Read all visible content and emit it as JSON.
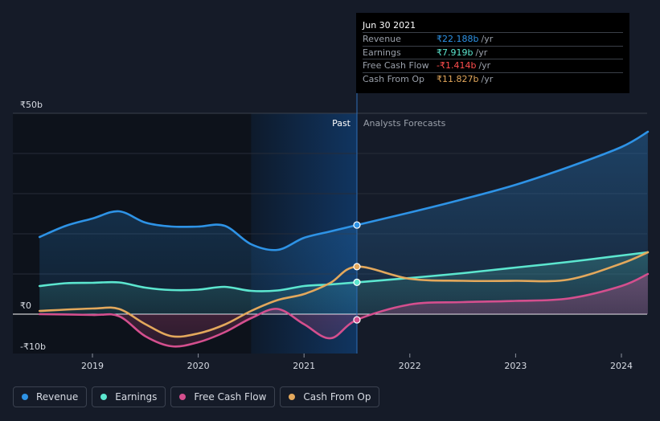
{
  "chart_data": {
    "type": "line",
    "title": "",
    "xlabel": "",
    "ylabel": "",
    "ylim": [
      -10,
      50
    ],
    "y_ticks": [
      {
        "value": 50,
        "label": "₹50b"
      },
      {
        "value": 0,
        "label": "₹0"
      },
      {
        "value": -10,
        "label": "-₹10b"
      }
    ],
    "x_ticks": [
      {
        "value": 2019,
        "label": "2019"
      },
      {
        "value": 2020,
        "label": "2020"
      },
      {
        "value": 2021,
        "label": "2021"
      },
      {
        "value": 2022,
        "label": "2022"
      },
      {
        "value": 2023,
        "label": "2023"
      },
      {
        "value": 2024,
        "label": "2024"
      }
    ],
    "xlim": [
      2018.25,
      2024.25
    ],
    "past_label": "Past",
    "forecast_label": "Analysts Forecasts",
    "highlight_range": [
      2020.5,
      2021.5
    ],
    "split_x": 2021.5,
    "series": [
      {
        "name": "Revenue",
        "color": "#2e93e6",
        "fill": true,
        "points": [
          [
            2018.5,
            19.2
          ],
          [
            2018.75,
            22.0
          ],
          [
            2019.0,
            23.8
          ],
          [
            2019.25,
            25.6
          ],
          [
            2019.5,
            22.8
          ],
          [
            2019.75,
            21.8
          ],
          [
            2020.0,
            21.8
          ],
          [
            2020.25,
            22.0
          ],
          [
            2020.5,
            17.4
          ],
          [
            2020.75,
            16.0
          ],
          [
            2021.0,
            19.0
          ],
          [
            2021.25,
            20.6
          ],
          [
            2021.5,
            22.188
          ],
          [
            2022.0,
            25.3
          ],
          [
            2022.5,
            28.6
          ],
          [
            2023.0,
            32.2
          ],
          [
            2023.5,
            36.6
          ],
          [
            2024.0,
            41.6
          ],
          [
            2024.25,
            45.4
          ]
        ]
      },
      {
        "name": "Earnings",
        "color": "#5ce6cf",
        "fill": true,
        "points": [
          [
            2018.5,
            7.0
          ],
          [
            2018.75,
            7.7
          ],
          [
            2019.0,
            7.8
          ],
          [
            2019.25,
            7.9
          ],
          [
            2019.5,
            6.6
          ],
          [
            2019.75,
            6.0
          ],
          [
            2020.0,
            6.1
          ],
          [
            2020.25,
            6.8
          ],
          [
            2020.5,
            5.8
          ],
          [
            2020.75,
            5.9
          ],
          [
            2021.0,
            7.0
          ],
          [
            2021.25,
            7.4
          ],
          [
            2021.5,
            7.919
          ],
          [
            2022.0,
            9.0
          ],
          [
            2022.5,
            10.2
          ],
          [
            2023.0,
            11.6
          ],
          [
            2023.5,
            13.0
          ],
          [
            2024.0,
            14.6
          ],
          [
            2024.25,
            15.4
          ]
        ]
      },
      {
        "name": "Free Cash Flow",
        "color": "#d44f8e",
        "fill": true,
        "points": [
          [
            2018.5,
            0.0
          ],
          [
            2019.0,
            -0.2
          ],
          [
            2019.25,
            -0.5
          ],
          [
            2019.5,
            -5.5
          ],
          [
            2019.75,
            -8.0
          ],
          [
            2020.0,
            -7.0
          ],
          [
            2020.25,
            -4.5
          ],
          [
            2020.5,
            -1.0
          ],
          [
            2020.75,
            1.3
          ],
          [
            2021.0,
            -2.5
          ],
          [
            2021.25,
            -6.0
          ],
          [
            2021.5,
            -1.414
          ],
          [
            2022.0,
            2.4
          ],
          [
            2022.5,
            3.0
          ],
          [
            2023.0,
            3.3
          ],
          [
            2023.5,
            3.9
          ],
          [
            2024.0,
            7.0
          ],
          [
            2024.25,
            10.0
          ]
        ]
      },
      {
        "name": "Cash From Op",
        "color": "#e3a85c",
        "fill": false,
        "points": [
          [
            2018.5,
            0.8
          ],
          [
            2019.0,
            1.4
          ],
          [
            2019.25,
            1.3
          ],
          [
            2019.5,
            -2.5
          ],
          [
            2019.75,
            -5.5
          ],
          [
            2020.0,
            -4.8
          ],
          [
            2020.25,
            -2.6
          ],
          [
            2020.5,
            0.8
          ],
          [
            2020.75,
            3.5
          ],
          [
            2021.0,
            5.0
          ],
          [
            2021.25,
            7.8
          ],
          [
            2021.5,
            11.827
          ],
          [
            2022.0,
            8.8
          ],
          [
            2022.5,
            8.3
          ],
          [
            2023.0,
            8.3
          ],
          [
            2023.5,
            8.6
          ],
          [
            2024.0,
            12.6
          ],
          [
            2024.25,
            15.4
          ]
        ]
      }
    ]
  },
  "tooltip": {
    "date": "Jun 30 2021",
    "rows": [
      {
        "label": "Revenue",
        "value": "₹22.188b",
        "unit": "/yr",
        "color": "#2e93e6"
      },
      {
        "label": "Earnings",
        "value": "₹7.919b",
        "unit": "/yr",
        "color": "#5ce6cf"
      },
      {
        "label": "Free Cash Flow",
        "value": "-₹1.414b",
        "unit": "/yr",
        "color": "#ff4d4d"
      },
      {
        "label": "Cash From Op",
        "value": "₹11.827b",
        "unit": "/yr",
        "color": "#e3a85c"
      }
    ]
  },
  "legend": [
    {
      "label": "Revenue",
      "color": "#2e93e6"
    },
    {
      "label": "Earnings",
      "color": "#5ce6cf"
    },
    {
      "label": "Free Cash Flow",
      "color": "#d44f8e"
    },
    {
      "label": "Cash From Op",
      "color": "#e3a85c"
    }
  ]
}
